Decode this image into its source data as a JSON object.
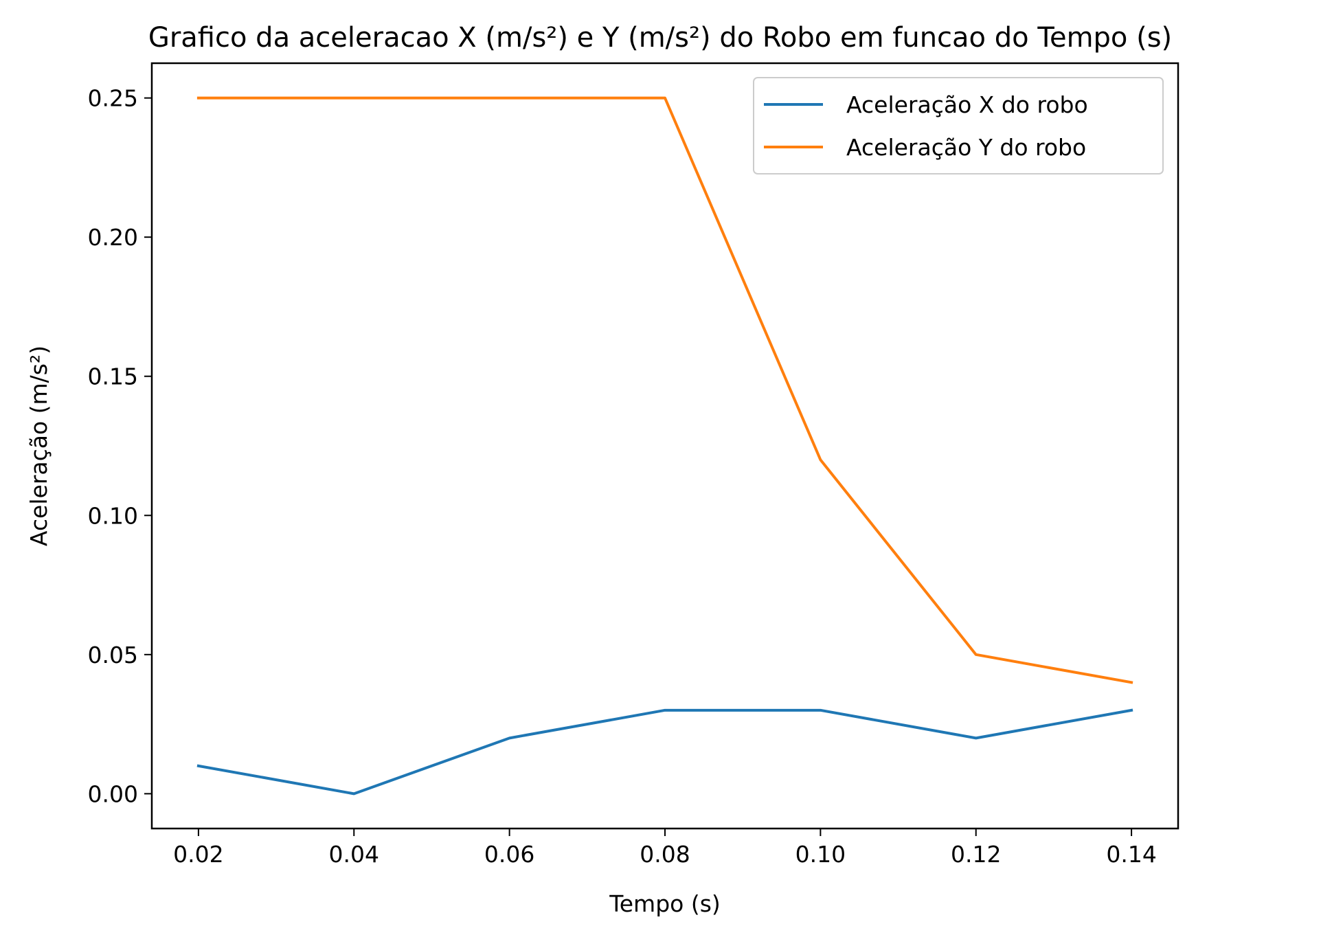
{
  "chart_data": {
    "type": "line",
    "title": "Grafico da aceleracao X (m/s²) e Y (m/s²) do Robo em funcao do Tempo (s)",
    "xlabel": "Tempo (s)",
    "ylabel": "Aceleração (m/s²)",
    "x": [
      0.02,
      0.04,
      0.06,
      0.08,
      0.1,
      0.12,
      0.14
    ],
    "xlim": [
      0.014,
      0.146
    ],
    "ylim": [
      -0.0125,
      0.2625
    ],
    "xticks": [
      "0.02",
      "0.04",
      "0.06",
      "0.08",
      "0.10",
      "0.12",
      "0.14"
    ],
    "yticks": [
      "0.00",
      "0.05",
      "0.10",
      "0.15",
      "0.20",
      "0.25"
    ],
    "grid": false,
    "legend_position": "top-right",
    "series": [
      {
        "name": "Aceleração X do robo",
        "color": "#1f77b4",
        "values": [
          0.01,
          0.0,
          0.02,
          0.03,
          0.03,
          0.02,
          0.03
        ]
      },
      {
        "name": "Aceleração Y do robo",
        "color": "#ff7f0e",
        "values": [
          0.25,
          0.25,
          0.25,
          0.25,
          0.12,
          0.05,
          0.04
        ]
      }
    ]
  }
}
